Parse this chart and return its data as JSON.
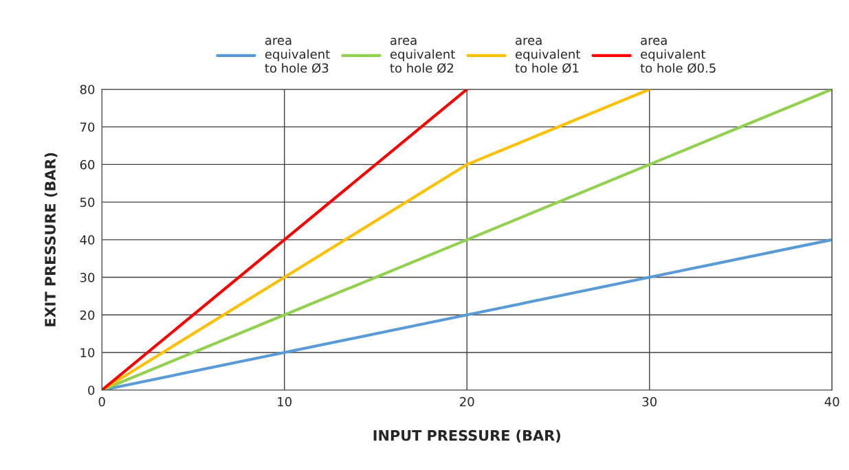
{
  "chart_data": {
    "type": "line",
    "xlabel": "INPUT PRESSURE (BAR)",
    "ylabel": "EXIT PRESSURE (BAR)",
    "x": [
      0,
      10,
      20,
      30,
      40
    ],
    "series": [
      {
        "name": "area\nequivalent\nto hole Ø3",
        "color": "#5b9bd5",
        "values": [
          0,
          10,
          20,
          30,
          40
        ]
      },
      {
        "name": "area\nequivalent\nto hole Ø2",
        "color": "#92d050",
        "values": [
          0,
          20,
          40,
          60,
          80
        ]
      },
      {
        "name": "area\nequivalent\nto hole Ø1",
        "color": "#ffc000",
        "values": [
          0,
          30,
          60,
          80,
          null
        ]
      },
      {
        "name": "area\nequivalent\nto hole Ø0.5",
        "color": "#ff0000",
        "values": [
          0,
          40,
          80,
          null,
          null
        ]
      }
    ],
    "xlim": [
      0,
      40
    ],
    "xticks": [
      0,
      10,
      20,
      30,
      40
    ],
    "ylim": [
      0,
      80
    ],
    "yticks": [
      0,
      10,
      20,
      30,
      40,
      50,
      60,
      70,
      80
    ],
    "grid": true,
    "legend": "top",
    "marker": "none",
    "line_style": "solid"
  }
}
